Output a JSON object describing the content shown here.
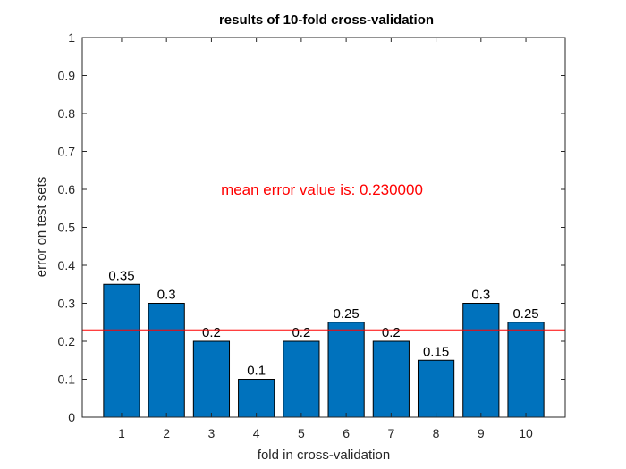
{
  "chart_data": {
    "type": "bar",
    "title": "results of 10-fold cross-validation",
    "xlabel": "fold in cross-validation",
    "ylabel": "error on test sets",
    "categories": [
      "1",
      "2",
      "3",
      "4",
      "5",
      "6",
      "7",
      "8",
      "9",
      "10"
    ],
    "values": [
      0.35,
      0.3,
      0.2,
      0.1,
      0.2,
      0.25,
      0.2,
      0.15,
      0.3,
      0.25
    ],
    "data_labels": [
      "0.35",
      "0.3",
      "0.2",
      "0.1",
      "0.2",
      "0.25",
      "0.2",
      "0.15",
      "0.3",
      "0.25"
    ],
    "ylim": [
      0,
      1
    ],
    "yticks": [
      "0",
      "0.1",
      "0.2",
      "0.3",
      "0.4",
      "0.5",
      "0.6",
      "0.7",
      "0.8",
      "0.9",
      "1"
    ],
    "mean_value": 0.23,
    "annotation": "mean error value is: 0.230000",
    "grid": false,
    "colors": {
      "bar_fill": "#0072BD",
      "bar_edge": "#000000",
      "mean_line": "#FF0000",
      "annotation": "#FF0000",
      "axis": "#262626"
    }
  }
}
